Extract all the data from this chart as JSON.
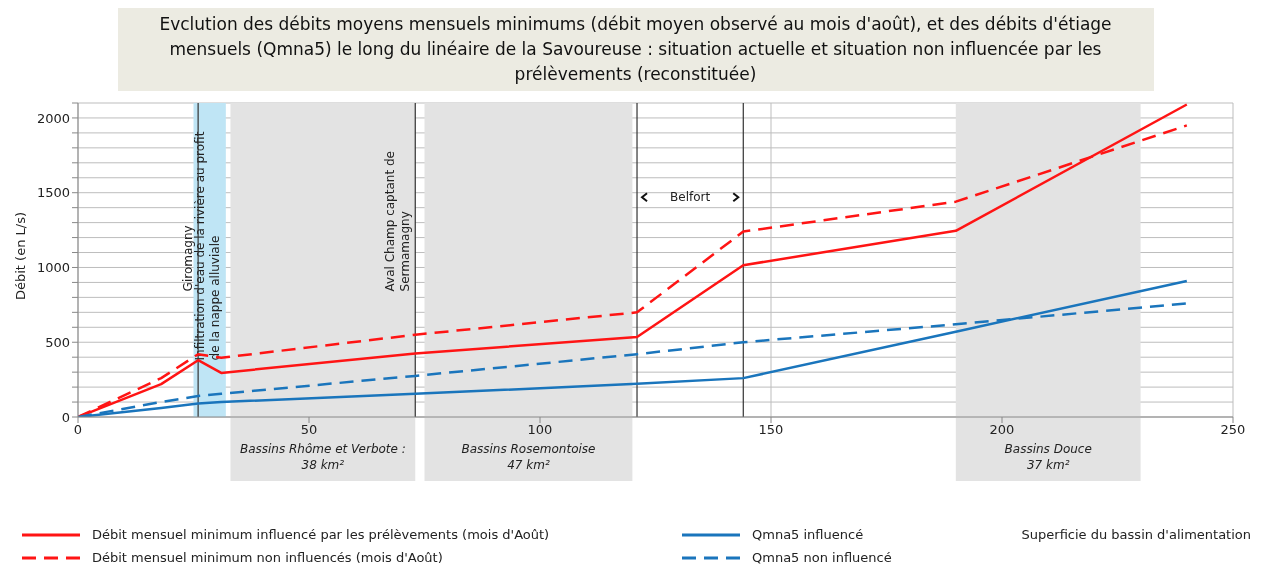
{
  "chart_data": {
    "type": "line",
    "title": "Evclution des débits moyens mensuels minimums (débit moyen observé au mois d'août), et des débits d'étiage mensuels (Qmna5) le long du linéaire de la Savoureuse : situation actuelle et situation non influencée par les prélèvements (reconstituée)",
    "ylabel": "Débit (en L/s)",
    "x": [
      0,
      18,
      26,
      31,
      73,
      121,
      144,
      190,
      240
    ],
    "series": [
      {
        "name": "Débit mensuel minimum influencé par les prélèvements (mois d'Août)",
        "color": "#ff1414",
        "line_style": "solid",
        "values": [
          0,
          220,
          380,
          295,
          425,
          535,
          1015,
          1245,
          2090
        ]
      },
      {
        "name": "Qmna5 influencé",
        "color": "#1a75bc",
        "line_style": "solid",
        "values": [
          0,
          60,
          90,
          100,
          155,
          222,
          260,
          570,
          910
        ]
      },
      {
        "name": "Débit mensuel minimum non influencés (mois d'Août)",
        "color": "#ff1414",
        "line_style": "dashed",
        "values": [
          0,
          260,
          420,
          396,
          550,
          700,
          1240,
          1440,
          1950
        ]
      },
      {
        "name": "Qmna5 non influencé",
        "color": "#1a75bc",
        "line_style": "dashed",
        "values": [
          0,
          100,
          140,
          155,
          275,
          420,
          500,
          620,
          760
        ]
      }
    ],
    "xlim": [
      0,
      250
    ],
    "xticks": [
      0,
      50,
      100,
      150,
      200,
      250
    ],
    "ylim": [
      0,
      2100
    ],
    "yticks": [
      0,
      {
        "value": 100,
        "label": null
      },
      {
        "value": 200,
        "label": null
      },
      {
        "value": 300,
        "label": null
      },
      {
        "value": 400,
        "label": null
      },
      500,
      {
        "value": 600,
        "label": null
      },
      {
        "value": 700,
        "label": null
      },
      {
        "value": 800,
        "label": null
      },
      {
        "value": 900,
        "label": null
      },
      1000,
      {
        "value": 1100,
        "label": null
      },
      {
        "value": 1200,
        "label": null
      },
      {
        "value": 1300,
        "label": null
      },
      {
        "value": 1400,
        "label": null
      },
      1500,
      {
        "value": 1600,
        "label": null
      },
      {
        "value": 1700,
        "label": null
      },
      {
        "value": 1800,
        "label": null
      },
      {
        "value": 1900,
        "label": null
      },
      2000,
      {
        "value": 2100,
        "label": null
      }
    ],
    "grid": true,
    "marker": "none",
    "legend": "bottom",
    "ref_lines": [
      {
        "axis": "x",
        "value": 26,
        "label": "Giromagny",
        "color": "#333333"
      },
      {
        "axis": "x",
        "value": 73,
        "label": "Aval Champ captant de\nSermamagny",
        "color": "#333333"
      },
      {
        "axis": "x",
        "value": 121,
        "label": "Belfort",
        "color": "#333333"
      },
      {
        "axis": "x",
        "value": 144,
        "label": null,
        "color": "#333333"
      }
    ],
    "bands": [
      {
        "axis": "x",
        "from": 25,
        "to": 32,
        "label": "Infiltration  d'eau de la rivière au profit\nde la nappe alluviale",
        "color": "#bfe5f5"
      },
      {
        "axis": "x",
        "from": 33,
        "to": 73,
        "label": "Bassins Rhôme et Verbote :\n38 km²",
        "color": "#e3e3e3"
      },
      {
        "axis": "x",
        "from": 75,
        "to": 120,
        "label": "Bassins Rosemontoise\n47 km²",
        "color": "#e3e3e3"
      },
      {
        "axis": "x",
        "from": 190,
        "to": 230,
        "label": "Bassins Douce\n37 km²",
        "color": "#e3e3e3"
      }
    ],
    "annotations": [
      "Superficie du bassin d'alimentation"
    ]
  }
}
